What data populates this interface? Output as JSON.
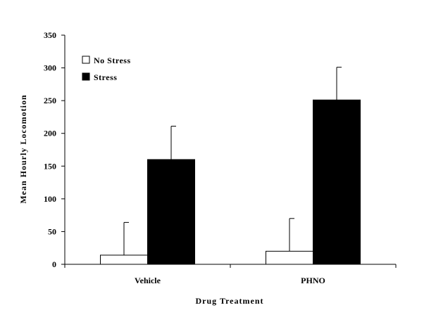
{
  "chart_data": {
    "type": "bar",
    "title": "",
    "xlabel": "Drug Treatment",
    "ylabel": "Mean Hourly Locomotion",
    "ylim": [
      0,
      350
    ],
    "yticks": [
      0,
      50,
      100,
      150,
      200,
      250,
      300,
      350
    ],
    "categories": [
      "Vehicle",
      "PHNO"
    ],
    "legend_position": "top-left",
    "grid": false,
    "series": [
      {
        "name": "No Stress",
        "color": "#ffffff",
        "values": [
          14,
          20
        ],
        "errors": [
          50,
          50
        ]
      },
      {
        "name": "Stress",
        "color": "#000000",
        "values": [
          160,
          251
        ],
        "errors": [
          51,
          50
        ]
      }
    ]
  }
}
